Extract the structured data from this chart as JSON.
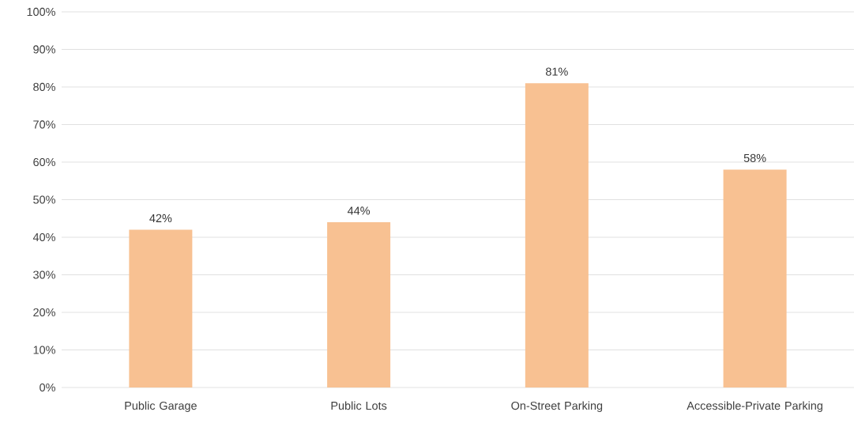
{
  "chart_data": {
    "type": "bar",
    "categories": [
      "Public Garage",
      "Public Lots",
      "On-Street Parking",
      "Accessible-Private Parking"
    ],
    "values": [
      42,
      44,
      81,
      58
    ],
    "value_labels": [
      "42%",
      "44%",
      "81%",
      "58%"
    ],
    "color": "#f8c192",
    "ylim": [
      0,
      100
    ],
    "yticks": [
      {
        "value": 0,
        "label": "0%"
      },
      {
        "value": 10,
        "label": "10%"
      },
      {
        "value": 20,
        "label": "20%"
      },
      {
        "value": 30,
        "label": "30%"
      },
      {
        "value": 40,
        "label": "40%"
      },
      {
        "value": 50,
        "label": "50%"
      },
      {
        "value": 60,
        "label": "60%"
      },
      {
        "value": 70,
        "label": "70%"
      },
      {
        "value": 80,
        "label": "80%"
      },
      {
        "value": 90,
        "label": "90%"
      },
      {
        "value": 100,
        "label": "100%"
      }
    ],
    "grid": "y"
  }
}
